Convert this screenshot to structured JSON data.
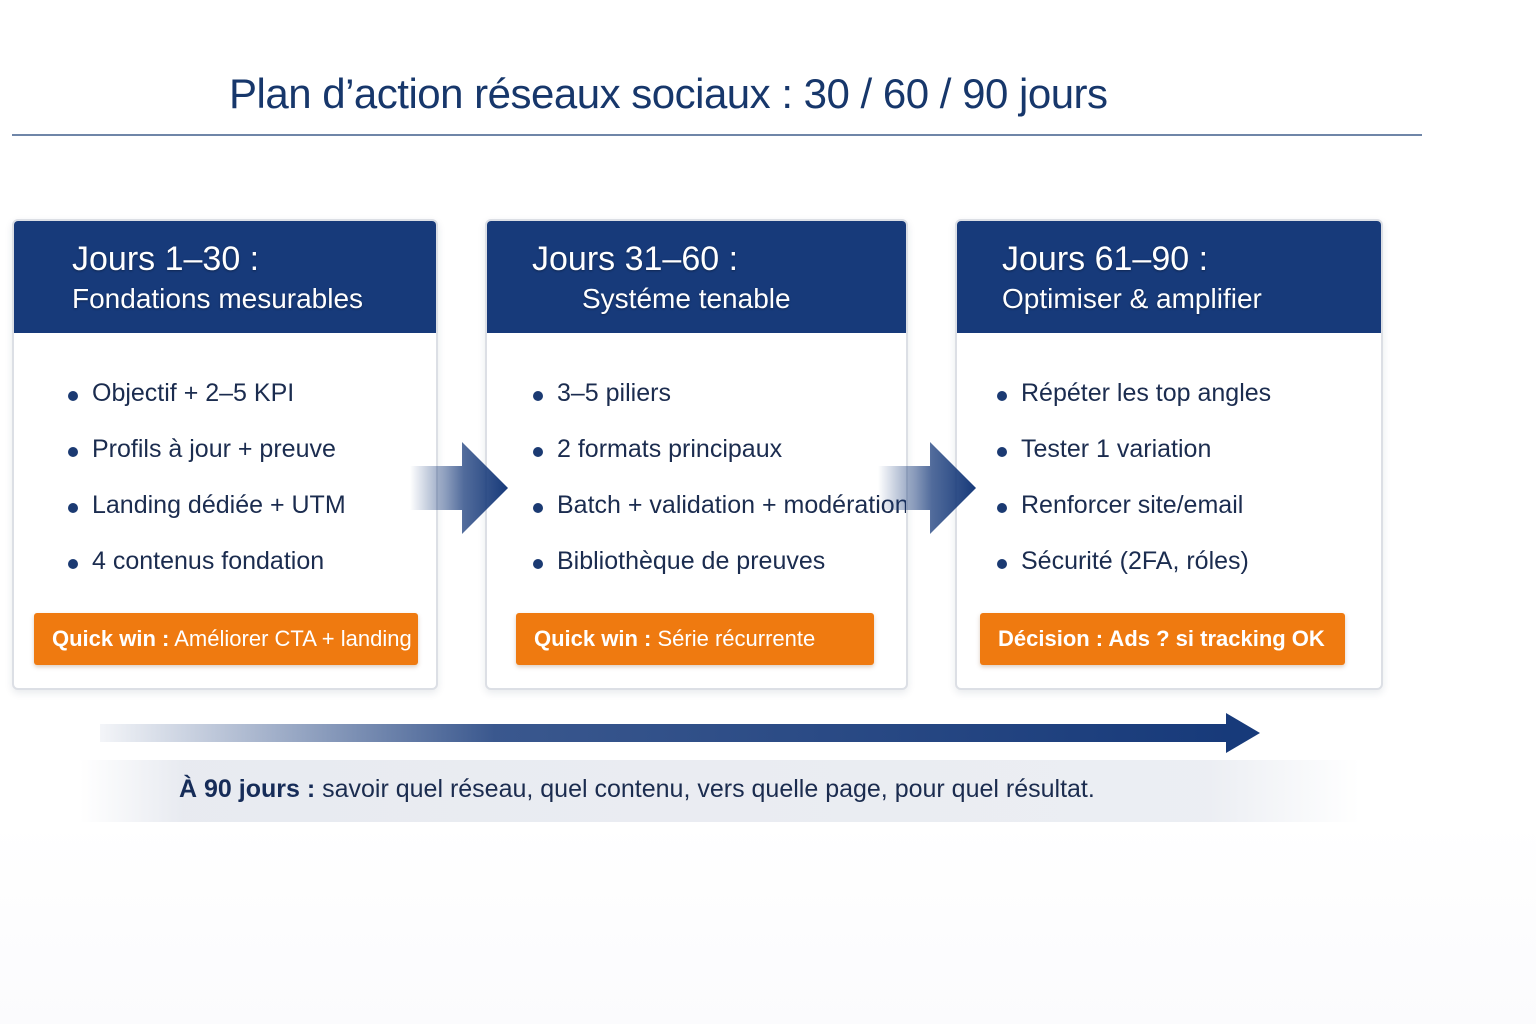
{
  "title": "Plan d’action réseaux sociaux : 30 / 60 / 90 jours",
  "phases": [
    {
      "range": "Jours 1–30 :",
      "subtitle": "Fondations mesurables",
      "items": [
        "Objectif + 2–5 KPI",
        "Profils à jour + preuve",
        "Landing dédiée + UTM",
        "4 contenus fondation"
      ],
      "badge_label": "Quick win :",
      "badge_text": " Améliorer CTA + landing"
    },
    {
      "range": "Jours 31–60 :",
      "subtitle": "Systéme tenable",
      "items": [
        "3–5 piliers",
        "2 formats principaux",
        "Batch + validation + modération",
        "Bibliothèque de preuves"
      ],
      "badge_label": "Quick win :",
      "badge_text": " Série récurrente"
    },
    {
      "range": "Jours 61–90 :",
      "subtitle": "Optimiser & amplifier",
      "items": [
        "Répéter les top angles",
        "Tester 1 variation",
        "Renforcer site/email",
        "Sécurité (2FA, róles)"
      ],
      "badge_label": "Décision : Ads ? si tracking OK",
      "badge_text": ""
    }
  ],
  "summary": {
    "lead": "À 90 jours :",
    "text": " savoir quel réseau, quel contenu, vers quelle page, pour quel résultat."
  },
  "colors": {
    "header_navy": "#173a7a",
    "accent_orange": "#ef7a10",
    "text_dark": "#1b2c4f"
  }
}
